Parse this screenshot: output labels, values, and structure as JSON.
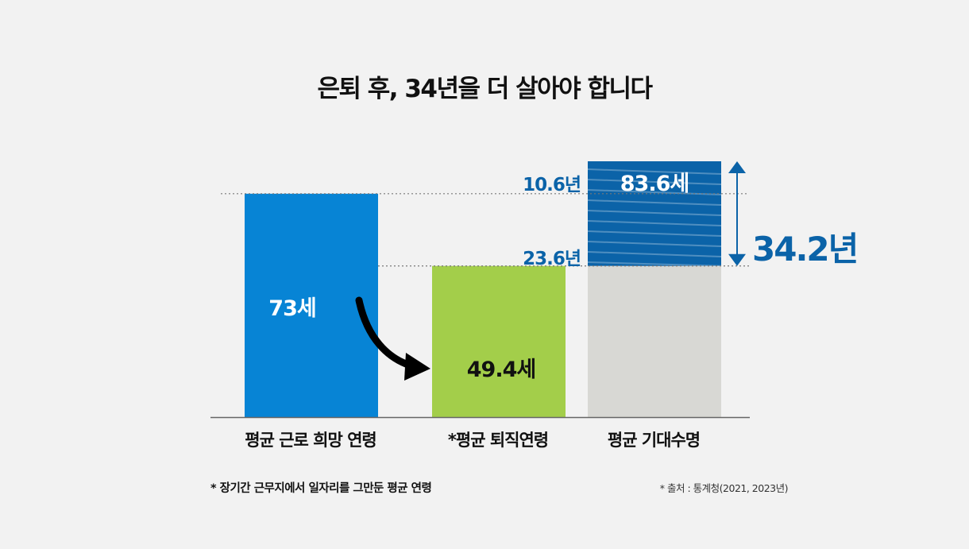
{
  "title": "은퇴 후, 34년을 더 살아야 합니다",
  "note": "* 장기간 근무지에서 일자리를 그만둔 평균 연령",
  "source": "* 출처 : 통계청(2021, 2023년)",
  "chart_data": {
    "type": "bar",
    "categories": [
      "평균 근로 희망 연령",
      "*평균 퇴직연령",
      "평균 기대수명"
    ],
    "values": [
      73,
      49.4,
      83.6
    ],
    "value_labels": [
      "73세",
      "49.4세",
      "83.6세"
    ],
    "colors": [
      "#0784d5",
      "#a3ce4a",
      "#d8d8d4"
    ],
    "highlight_color": "#0b63a8",
    "gap_labels": {
      "upper": "10.6년",
      "lower": "23.6년",
      "total": "34.2년"
    },
    "ylim": [
      0,
      85
    ]
  }
}
